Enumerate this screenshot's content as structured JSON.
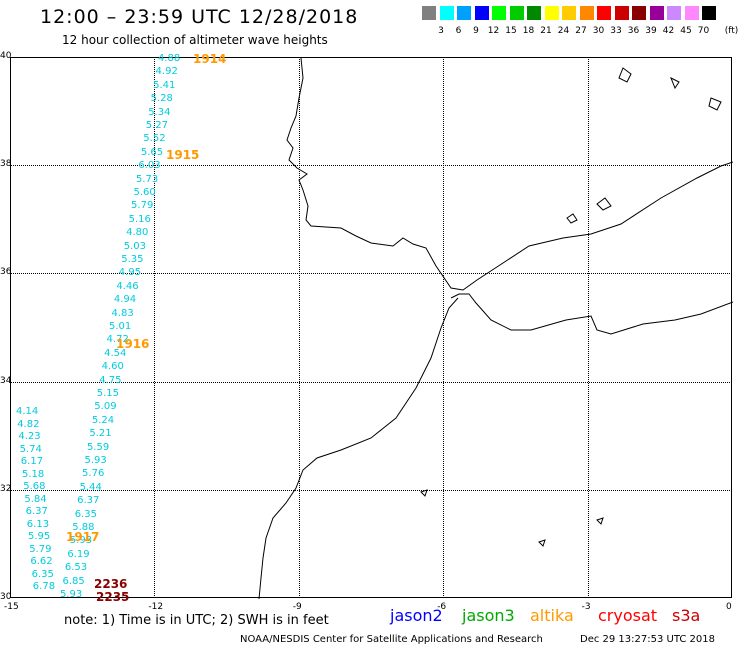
{
  "header": {
    "title": "12:00 – 23:59 UTC 12/28/2018",
    "subtitle": "12 hour collection of altimeter wave heights"
  },
  "legend": {
    "unit": "(ft)",
    "bins": [
      {
        "label": "3",
        "color": "#808080"
      },
      {
        "label": "6",
        "color": "#00ffff"
      },
      {
        "label": "9",
        "color": "#00a0ff"
      },
      {
        "label": "12",
        "color": "#0000ff"
      },
      {
        "label": "15",
        "color": "#00ff00"
      },
      {
        "label": "18",
        "color": "#00cc00"
      },
      {
        "label": "21",
        "color": "#008800"
      },
      {
        "label": "24",
        "color": "#ffff00"
      },
      {
        "label": "27",
        "color": "#ffcc00"
      },
      {
        "label": "30",
        "color": "#ff8800"
      },
      {
        "label": "33",
        "color": "#ff0000"
      },
      {
        "label": "36",
        "color": "#cc0000"
      },
      {
        "label": "39",
        "color": "#880000"
      },
      {
        "label": "42",
        "color": "#990099"
      },
      {
        "label": "45",
        "color": "#cc88ff"
      },
      {
        "label": "70",
        "color": "#ff88ff"
      },
      {
        "label": "",
        "color": "#000000"
      }
    ]
  },
  "axes": {
    "lat_labels": [
      "40",
      "38",
      "36",
      "34",
      "32",
      "30"
    ],
    "lon_labels": [
      "-15",
      "-12",
      "-9",
      "-6",
      "-3",
      "0"
    ]
  },
  "wave_heights": {
    "jason3_pass": [
      "4.88",
      "4.92",
      "5.41",
      "5.28",
      "5.34",
      "5.27",
      "5.52",
      "5.65",
      "6.03",
      "5.73",
      "5.60",
      "5.79",
      "5.16",
      "4.80",
      "5.03",
      "5.35",
      "4.95",
      "4.46",
      "4.94",
      "4.83",
      "5.01",
      "4.72",
      "4.54",
      "4.60",
      "4.75",
      "5.15",
      "5.09",
      "5.24",
      "5.21",
      "5.59",
      "5.93",
      "5.76",
      "5.44",
      "6.37",
      "6.35",
      "5.88",
      "5.93",
      "6.19",
      "6.53",
      "6.85",
      "5.93"
    ],
    "west_pass": [
      "4.14",
      "4.82",
      "4.23",
      "5.74",
      "6.17",
      "5.18",
      "5.68",
      "5.84",
      "6.37",
      "6.13",
      "5.95",
      "5.79",
      "6.62",
      "6.35",
      "6.78"
    ]
  },
  "time_labels": [
    {
      "text": "1914",
      "color": "#ff9900"
    },
    {
      "text": "1915",
      "color": "#ff9900"
    },
    {
      "text": "1916",
      "color": "#ff9900"
    },
    {
      "text": "1917",
      "color": "#ff9900"
    },
    {
      "text": "2236",
      "color": "#880000"
    },
    {
      "text": "2235",
      "color": "#880000"
    }
  ],
  "footer": {
    "note": "note:  1) Time is in UTC;  2) SWH is in feet",
    "satellites": [
      {
        "name": "jason2",
        "color": "#0000ff"
      },
      {
        "name": "jason3",
        "color": "#00aa00"
      },
      {
        "name": "altika",
        "color": "#ff9900"
      },
      {
        "name": "cryosat",
        "color": "#ff0000"
      },
      {
        "name": "s3a",
        "color": "#cc0000"
      }
    ],
    "credit": "NOAA/NESDIS Center for Satellite Applications and Research",
    "timestamp": "Dec 29 13:27:53 UTC 2018"
  }
}
